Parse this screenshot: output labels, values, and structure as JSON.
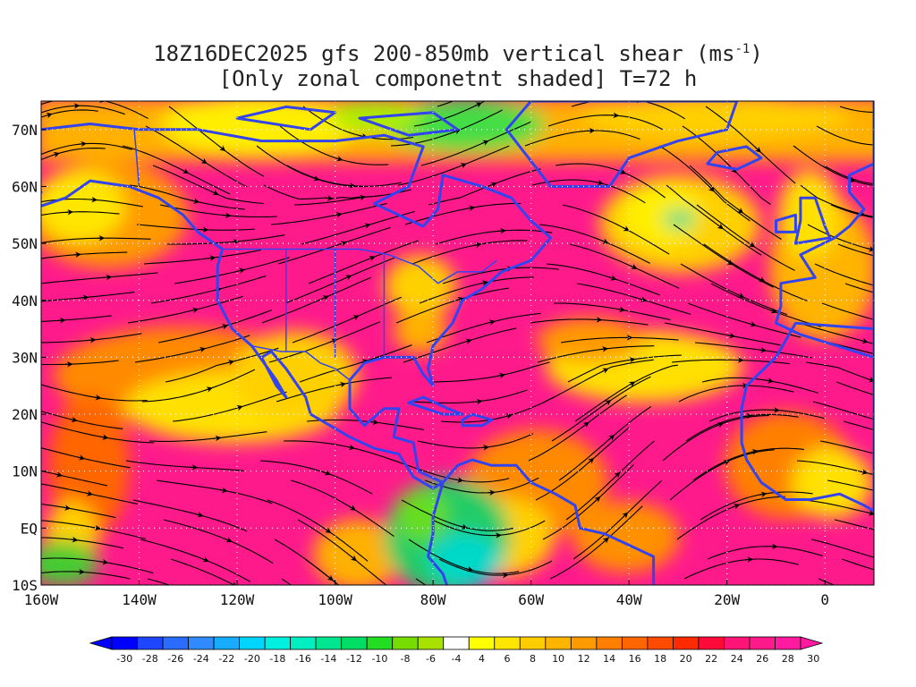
{
  "title": {
    "line1_prefix": "18Z16DEC2025 gfs 200-850mb vertical shear (ms",
    "line1_sup": "-1",
    "line1_suffix": ")",
    "line2": "[Only zonal componetnt shaded] T=72 h"
  },
  "map": {
    "lon_range": [
      -160,
      10
    ],
    "lat_range": [
      -10,
      75
    ],
    "x_ticks": [
      "160W",
      "140W",
      "120W",
      "100W",
      "80W",
      "60W",
      "40W",
      "20W",
      "0"
    ],
    "y_ticks": [
      "70N",
      "60N",
      "50N",
      "40N",
      "30N",
      "20N",
      "10N",
      "EQ",
      "10S"
    ],
    "grid": "dotted",
    "layers": [
      "shaded zonal shear",
      "streamlines",
      "coastlines",
      "political borders"
    ],
    "coast_color": "#3344ee"
  },
  "colorbar": {
    "labels": [
      "-30",
      "-28",
      "-26",
      "-24",
      "-22",
      "-20",
      "-18",
      "-16",
      "-14",
      "-12",
      "-10",
      "-8",
      "-6",
      "-4",
      "4",
      "6",
      "8",
      "10",
      "12",
      "14",
      "16",
      "18",
      "20",
      "22",
      "24",
      "26",
      "28",
      "30"
    ],
    "colors": [
      "#0000ff",
      "#1e46ff",
      "#2a6cff",
      "#2f8bff",
      "#18acff",
      "#00d5ff",
      "#00f0e0",
      "#00eec0",
      "#00e690",
      "#00dd64",
      "#22dd22",
      "#77dd00",
      "#a8e000",
      "#ffffff",
      "#ffff00",
      "#ffe600",
      "#ffcc00",
      "#ffb400",
      "#ff9a00",
      "#ff8000",
      "#ff6600",
      "#ff4b00",
      "#ff2a00",
      "#ff0a3a",
      "#ff1478",
      "#ff1a8c",
      "#ff1aa0"
    ]
  }
}
